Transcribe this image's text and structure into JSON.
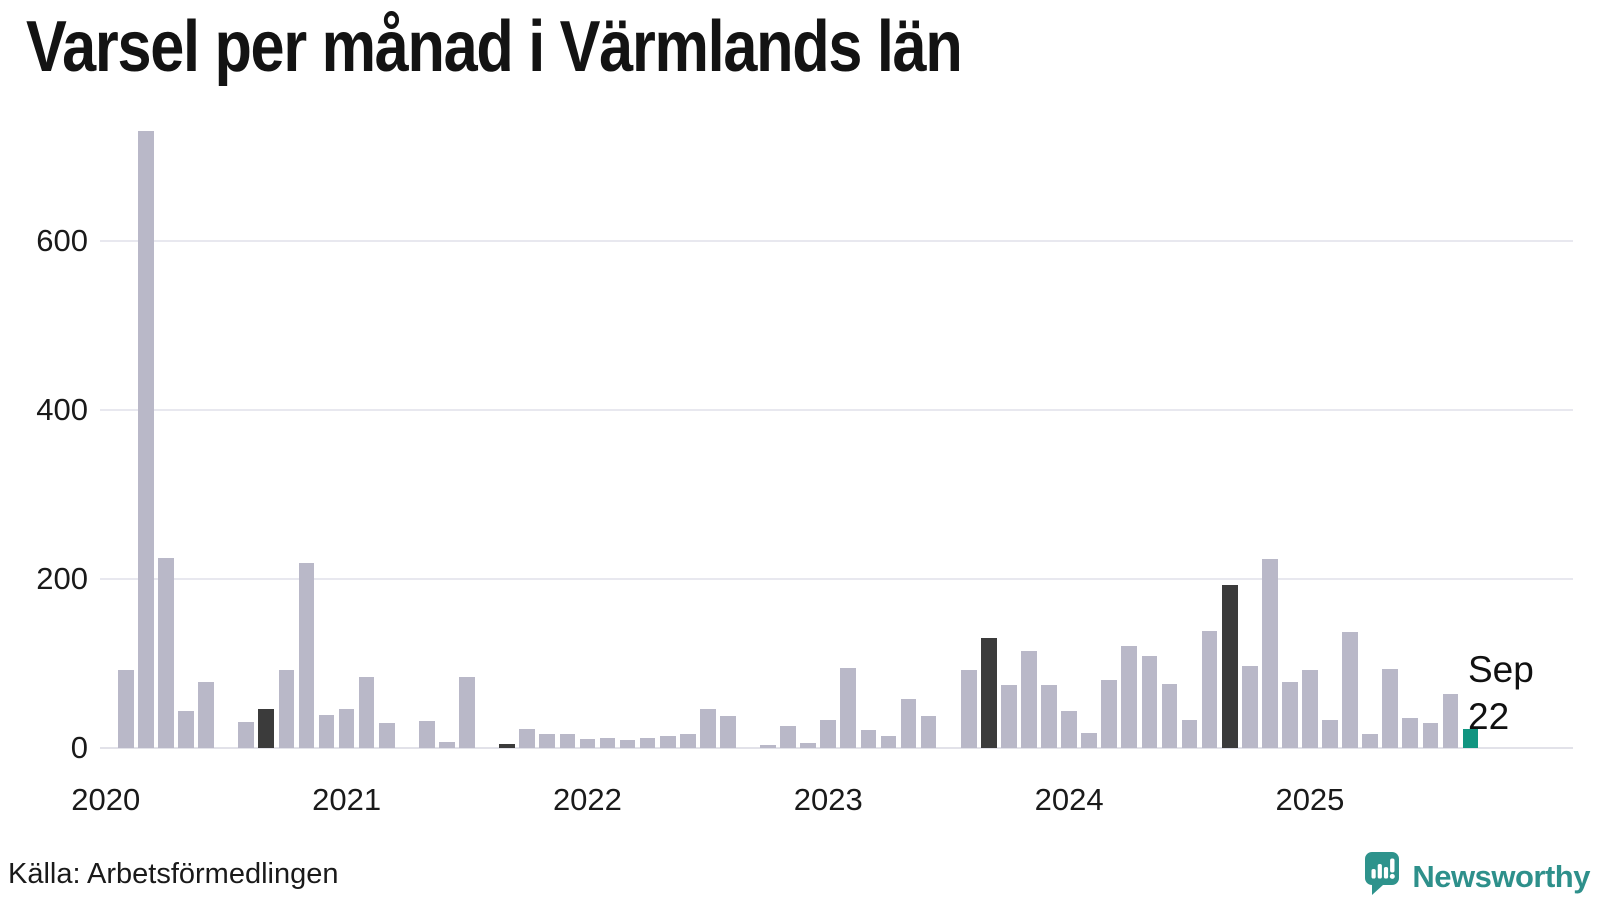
{
  "chart_data": {
    "type": "bar",
    "title": "Varsel per månad i Värmlands län",
    "xlabel": "",
    "ylabel": "",
    "ylim": [
      0,
      760
    ],
    "grid": "horizontal",
    "y_ticks": [
      0,
      200,
      400,
      600
    ],
    "y_tick_labels": [
      "0",
      "200",
      "400",
      "600"
    ],
    "x_tick_labels": [
      "2020",
      "2021",
      "2022",
      "2023",
      "2024",
      "2025"
    ],
    "legend": "none",
    "series": [
      {
        "name": "Varsel per månad",
        "points": [
          [
            "2020-01",
            0,
            "normal"
          ],
          [
            "2020-02",
            92,
            "normal"
          ],
          [
            "2020-03",
            730,
            "normal"
          ],
          [
            "2020-04",
            225,
            "normal"
          ],
          [
            "2020-05",
            44,
            "normal"
          ],
          [
            "2020-06",
            78,
            "normal"
          ],
          [
            "2020-07",
            0,
            "normal"
          ],
          [
            "2020-08",
            31,
            "normal"
          ],
          [
            "2020-09",
            46,
            "september"
          ],
          [
            "2020-10",
            92,
            "normal"
          ],
          [
            "2020-11",
            219,
            "normal"
          ],
          [
            "2020-12",
            39,
            "normal"
          ],
          [
            "2021-01",
            46,
            "normal"
          ],
          [
            "2021-02",
            84,
            "normal"
          ],
          [
            "2021-03",
            29,
            "normal"
          ],
          [
            "2021-04",
            0,
            "normal"
          ],
          [
            "2021-05",
            32,
            "normal"
          ],
          [
            "2021-06",
            7,
            "normal"
          ],
          [
            "2021-07",
            84,
            "normal"
          ],
          [
            "2021-08",
            0,
            "normal"
          ],
          [
            "2021-09",
            5,
            "september"
          ],
          [
            "2021-10",
            22,
            "normal"
          ],
          [
            "2021-11",
            16,
            "normal"
          ],
          [
            "2021-12",
            16,
            "normal"
          ],
          [
            "2022-01",
            11,
            "normal"
          ],
          [
            "2022-02",
            12,
            "normal"
          ],
          [
            "2022-03",
            9,
            "normal"
          ],
          [
            "2022-04",
            12,
            "normal"
          ],
          [
            "2022-05",
            14,
            "normal"
          ],
          [
            "2022-06",
            16,
            "normal"
          ],
          [
            "2022-07",
            46,
            "normal"
          ],
          [
            "2022-08",
            38,
            "normal"
          ],
          [
            "2022-09",
            0,
            "september"
          ],
          [
            "2022-10",
            4,
            "normal"
          ],
          [
            "2022-11",
            26,
            "normal"
          ],
          [
            "2022-12",
            6,
            "normal"
          ],
          [
            "2023-01",
            33,
            "normal"
          ],
          [
            "2023-02",
            95,
            "normal"
          ],
          [
            "2023-03",
            21,
            "normal"
          ],
          [
            "2023-04",
            14,
            "normal"
          ],
          [
            "2023-05",
            58,
            "normal"
          ],
          [
            "2023-06",
            38,
            "normal"
          ],
          [
            "2023-07",
            0,
            "normal"
          ],
          [
            "2023-08",
            92,
            "normal"
          ],
          [
            "2023-09",
            130,
            "september"
          ],
          [
            "2023-10",
            74,
            "normal"
          ],
          [
            "2023-11",
            115,
            "normal"
          ],
          [
            "2023-12",
            75,
            "normal"
          ],
          [
            "2024-01",
            44,
            "normal"
          ],
          [
            "2024-02",
            18,
            "normal"
          ],
          [
            "2024-03",
            80,
            "normal"
          ],
          [
            "2024-04",
            121,
            "normal"
          ],
          [
            "2024-05",
            109,
            "normal"
          ],
          [
            "2024-06",
            76,
            "normal"
          ],
          [
            "2024-07",
            33,
            "normal"
          ],
          [
            "2024-08",
            138,
            "normal"
          ],
          [
            "2024-09",
            193,
            "september"
          ],
          [
            "2024-10",
            97,
            "normal"
          ],
          [
            "2024-11",
            224,
            "normal"
          ],
          [
            "2024-12",
            78,
            "normal"
          ],
          [
            "2025-01",
            92,
            "normal"
          ],
          [
            "2025-02",
            33,
            "normal"
          ],
          [
            "2025-03",
            137,
            "normal"
          ],
          [
            "2025-04",
            17,
            "normal"
          ],
          [
            "2025-05",
            93,
            "normal"
          ],
          [
            "2025-06",
            36,
            "normal"
          ],
          [
            "2025-07",
            30,
            "normal"
          ],
          [
            "2025-08",
            64,
            "normal"
          ],
          [
            "2025-09",
            22,
            "current"
          ]
        ]
      }
    ],
    "annotation": {
      "line1": "Sep",
      "line2": "22",
      "target": "2025-09"
    },
    "colors": {
      "normal": "#b9b8c8",
      "september": "#3b3b3b",
      "current": "#119581",
      "gridline": "#e8e8ef",
      "axis": "#e2e2e9"
    }
  },
  "footer": {
    "source": "Källa: Arbetsförmedlingen",
    "brand": "Newsworthy",
    "brand_color": "#2e908b"
  }
}
